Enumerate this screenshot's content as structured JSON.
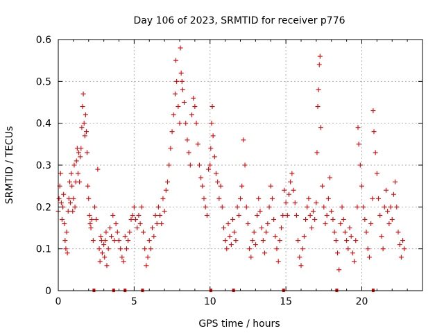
{
  "chart_data": {
    "type": "scatter",
    "title": "Day 106 of 2023, SRMTID for receiver p776",
    "xlabel": "GPS time / hours",
    "ylabel": "SRMTID / TECUs",
    "xlim": [
      0,
      24
    ],
    "ylim": [
      0,
      0.6
    ],
    "xticks": [
      0,
      5,
      10,
      15,
      20
    ],
    "yticks": [
      0,
      0.1,
      0.2,
      0.3,
      0.4,
      0.5,
      0.6
    ],
    "xtick_labels": [
      "0",
      "5",
      "10",
      "15",
      "20"
    ],
    "ytick_labels": [
      "0",
      "0.1",
      "0.2",
      "0.3",
      "0.4",
      "0.5",
      "0.6"
    ],
    "grid": true,
    "marker": "+",
    "color": "#e00000",
    "series": [
      {
        "name": "SRMTID",
        "points": [
          [
            0.0,
            0.19
          ],
          [
            0.05,
            0.22
          ],
          [
            0.1,
            0.25
          ],
          [
            0.15,
            0.28
          ],
          [
            0.2,
            0.21
          ],
          [
            0.25,
            0.17
          ],
          [
            0.3,
            0.2
          ],
          [
            0.35,
            0.23
          ],
          [
            0.4,
            0.16
          ],
          [
            0.45,
            0.12
          ],
          [
            0.5,
            0.1
          ],
          [
            0.55,
            0.14
          ],
          [
            0.6,
            0.09
          ],
          [
            0.65,
            0.19
          ],
          [
            0.7,
            0.22
          ],
          [
            0.75,
            0.26
          ],
          [
            0.8,
            0.21
          ],
          [
            0.85,
            0.28
          ],
          [
            0.9,
            0.25
          ],
          [
            0.95,
            0.19
          ],
          [
            1.0,
            0.22
          ],
          [
            1.05,
            0.3
          ],
          [
            1.1,
            0.2
          ],
          [
            1.15,
            0.26
          ],
          [
            1.2,
            0.31
          ],
          [
            1.25,
            0.34
          ],
          [
            1.3,
            0.28
          ],
          [
            1.35,
            0.33
          ],
          [
            1.4,
            0.26
          ],
          [
            1.45,
            0.32
          ],
          [
            1.5,
            0.34
          ],
          [
            1.55,
            0.39
          ],
          [
            1.6,
            0.44
          ],
          [
            1.65,
            0.47
          ],
          [
            1.7,
            0.4
          ],
          [
            1.75,
            0.37
          ],
          [
            1.8,
            0.42
          ],
          [
            1.85,
            0.38
          ],
          [
            1.9,
            0.33
          ],
          [
            1.95,
            0.25
          ],
          [
            2.0,
            0.22
          ],
          [
            2.05,
            0.18
          ],
          [
            2.1,
            0.16
          ],
          [
            2.15,
            0.15
          ],
          [
            2.2,
            0.17
          ],
          [
            2.3,
            0.12
          ],
          [
            2.4,
            0.2
          ],
          [
            2.5,
            0.17
          ],
          [
            2.6,
            0.29
          ],
          [
            2.7,
            0.1
          ],
          [
            2.75,
            0.07
          ],
          [
            2.8,
            0.13
          ],
          [
            2.85,
            0.12
          ],
          [
            2.9,
            0.09
          ],
          [
            3.0,
            0.11
          ],
          [
            3.05,
            0.08
          ],
          [
            3.1,
            0.12
          ],
          [
            3.15,
            0.14
          ],
          [
            3.2,
            0.06
          ],
          [
            3.3,
            0.1
          ],
          [
            3.4,
            0.15
          ],
          [
            3.5,
            0.13
          ],
          [
            3.6,
            0.18
          ],
          [
            3.7,
            0.12
          ],
          [
            3.8,
            0.16
          ],
          [
            3.9,
            0.14
          ],
          [
            4.0,
            0.12
          ],
          [
            4.1,
            0.1
          ],
          [
            4.2,
            0.08
          ],
          [
            4.3,
            0.07
          ],
          [
            4.4,
            0.13
          ],
          [
            4.5,
            0.1
          ],
          [
            4.6,
            0.12
          ],
          [
            4.7,
            0.14
          ],
          [
            4.8,
            0.17
          ],
          [
            4.9,
            0.18
          ],
          [
            5.0,
            0.2
          ],
          [
            5.1,
            0.17
          ],
          [
            5.2,
            0.15
          ],
          [
            5.3,
            0.18
          ],
          [
            5.4,
            0.16
          ],
          [
            5.5,
            0.2
          ],
          [
            5.6,
            0.14
          ],
          [
            5.7,
            0.1
          ],
          [
            5.8,
            0.06
          ],
          [
            5.9,
            0.08
          ],
          [
            6.0,
            0.12
          ],
          [
            6.1,
            0.1
          ],
          [
            6.2,
            0.15
          ],
          [
            6.3,
            0.13
          ],
          [
            6.4,
            0.18
          ],
          [
            6.5,
            0.16
          ],
          [
            6.6,
            0.2
          ],
          [
            6.7,
            0.18
          ],
          [
            6.8,
            0.16
          ],
          [
            6.9,
            0.22
          ],
          [
            7.0,
            0.19
          ],
          [
            7.1,
            0.24
          ],
          [
            7.2,
            0.26
          ],
          [
            7.3,
            0.3
          ],
          [
            7.4,
            0.34
          ],
          [
            7.5,
            0.38
          ],
          [
            7.6,
            0.42
          ],
          [
            7.7,
            0.47
          ],
          [
            7.75,
            0.55
          ],
          [
            7.8,
            0.5
          ],
          [
            7.9,
            0.44
          ],
          [
            8.0,
            0.4
          ],
          [
            8.05,
            0.58
          ],
          [
            8.1,
            0.52
          ],
          [
            8.15,
            0.5
          ],
          [
            8.2,
            0.48
          ],
          [
            8.3,
            0.45
          ],
          [
            8.4,
            0.4
          ],
          [
            8.5,
            0.36
          ],
          [
            8.6,
            0.33
          ],
          [
            8.7,
            0.3
          ],
          [
            8.8,
            0.42
          ],
          [
            8.9,
            0.46
          ],
          [
            9.0,
            0.44
          ],
          [
            9.1,
            0.4
          ],
          [
            9.2,
            0.35
          ],
          [
            9.3,
            0.3
          ],
          [
            9.4,
            0.27
          ],
          [
            9.5,
            0.25
          ],
          [
            9.6,
            0.22
          ],
          [
            9.7,
            0.2
          ],
          [
            9.8,
            0.18
          ],
          [
            9.9,
            0.29
          ],
          [
            10.0,
            0.3
          ],
          [
            10.05,
            0.34
          ],
          [
            10.1,
            0.4
          ],
          [
            10.15,
            0.44
          ],
          [
            10.2,
            0.37
          ],
          [
            10.3,
            0.32
          ],
          [
            10.4,
            0.28
          ],
          [
            10.5,
            0.26
          ],
          [
            10.6,
            0.22
          ],
          [
            10.7,
            0.25
          ],
          [
            10.8,
            0.2
          ],
          [
            10.9,
            0.15
          ],
          [
            11.0,
            0.12
          ],
          [
            11.1,
            0.1
          ],
          [
            11.2,
            0.16
          ],
          [
            11.3,
            0.13
          ],
          [
            11.4,
            0.11
          ],
          [
            11.5,
            0.17
          ],
          [
            11.6,
            0.14
          ],
          [
            11.7,
            0.12
          ],
          [
            11.8,
            0.2
          ],
          [
            11.9,
            0.18
          ],
          [
            12.0,
            0.22
          ],
          [
            12.1,
            0.25
          ],
          [
            12.2,
            0.36
          ],
          [
            12.3,
            0.3
          ],
          [
            12.4,
            0.2
          ],
          [
            12.5,
            0.16
          ],
          [
            12.6,
            0.1
          ],
          [
            12.7,
            0.08
          ],
          [
            12.8,
            0.12
          ],
          [
            12.9,
            0.14
          ],
          [
            13.0,
            0.11
          ],
          [
            13.1,
            0.18
          ],
          [
            13.2,
            0.22
          ],
          [
            13.3,
            0.19
          ],
          [
            13.4,
            0.15
          ],
          [
            13.5,
            0.12
          ],
          [
            13.6,
            0.09
          ],
          [
            13.7,
            0.14
          ],
          [
            13.8,
            0.16
          ],
          [
            13.9,
            0.2
          ],
          [
            14.0,
            0.25
          ],
          [
            14.1,
            0.22
          ],
          [
            14.2,
            0.17
          ],
          [
            14.3,
            0.13
          ],
          [
            14.4,
            0.1
          ],
          [
            14.5,
            0.07
          ],
          [
            14.6,
            0.12
          ],
          [
            14.7,
            0.15
          ],
          [
            14.8,
            0.18
          ],
          [
            14.9,
            0.24
          ],
          [
            15.0,
            0.21
          ],
          [
            15.1,
            0.18
          ],
          [
            15.2,
            0.23
          ],
          [
            15.3,
            0.26
          ],
          [
            15.4,
            0.28
          ],
          [
            15.5,
            0.24
          ],
          [
            15.6,
            0.21
          ],
          [
            15.7,
            0.18
          ],
          [
            15.8,
            0.12
          ],
          [
            15.9,
            0.08
          ],
          [
            16.0,
            0.06
          ],
          [
            16.1,
            0.1
          ],
          [
            16.2,
            0.13
          ],
          [
            16.3,
            0.17
          ],
          [
            16.4,
            0.2
          ],
          [
            16.5,
            0.22
          ],
          [
            16.6,
            0.18
          ],
          [
            16.7,
            0.15
          ],
          [
            16.8,
            0.19
          ],
          [
            16.9,
            0.17
          ],
          [
            17.0,
            0.21
          ],
          [
            17.05,
            0.33
          ],
          [
            17.1,
            0.44
          ],
          [
            17.15,
            0.48
          ],
          [
            17.2,
            0.54
          ],
          [
            17.25,
            0.56
          ],
          [
            17.3,
            0.39
          ],
          [
            17.4,
            0.25
          ],
          [
            17.5,
            0.2
          ],
          [
            17.6,
            0.16
          ],
          [
            17.7,
            0.18
          ],
          [
            17.8,
            0.22
          ],
          [
            17.9,
            0.27
          ],
          [
            18.0,
            0.19
          ],
          [
            18.1,
            0.17
          ],
          [
            18.2,
            0.14
          ],
          [
            18.3,
            0.12
          ],
          [
            18.4,
            0.09
          ],
          [
            18.5,
            0.05
          ],
          [
            18.6,
            0.16
          ],
          [
            18.7,
            0.2
          ],
          [
            18.8,
            0.17
          ],
          [
            18.9,
            0.14
          ],
          [
            19.0,
            0.12
          ],
          [
            19.1,
            0.1
          ],
          [
            19.2,
            0.15
          ],
          [
            19.3,
            0.13
          ],
          [
            19.4,
            0.09
          ],
          [
            19.5,
            0.07
          ],
          [
            19.6,
            0.12
          ],
          [
            19.7,
            0.2
          ],
          [
            19.75,
            0.39
          ],
          [
            19.8,
            0.35
          ],
          [
            19.9,
            0.3
          ],
          [
            20.0,
            0.25
          ],
          [
            20.1,
            0.2
          ],
          [
            20.2,
            0.17
          ],
          [
            20.3,
            0.14
          ],
          [
            20.4,
            0.1
          ],
          [
            20.5,
            0.08
          ],
          [
            20.6,
            0.16
          ],
          [
            20.7,
            0.22
          ],
          [
            20.75,
            0.43
          ],
          [
            20.8,
            0.38
          ],
          [
            20.9,
            0.33
          ],
          [
            21.0,
            0.28
          ],
          [
            21.1,
            0.22
          ],
          [
            21.2,
            0.18
          ],
          [
            21.3,
            0.13
          ],
          [
            21.4,
            0.1
          ],
          [
            21.5,
            0.2
          ],
          [
            21.6,
            0.24
          ],
          [
            21.7,
            0.19
          ],
          [
            21.8,
            0.16
          ],
          [
            21.9,
            0.2
          ],
          [
            22.0,
            0.17
          ],
          [
            22.1,
            0.23
          ],
          [
            22.2,
            0.26
          ],
          [
            22.3,
            0.2
          ],
          [
            22.4,
            0.14
          ],
          [
            22.5,
            0.11
          ],
          [
            22.6,
            0.08
          ],
          [
            22.7,
            0.12
          ],
          [
            22.8,
            0.1
          ]
        ]
      }
    ],
    "baseline_markers_x": [
      2.35,
      3.65,
      4.4,
      5.55,
      10.05,
      11.55,
      14.85,
      18.35,
      20.75
    ]
  }
}
